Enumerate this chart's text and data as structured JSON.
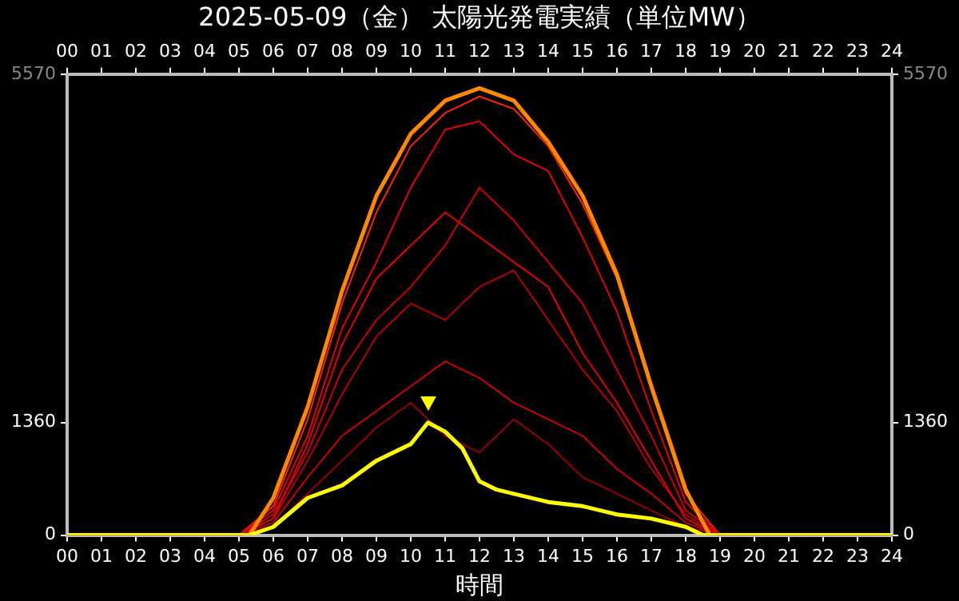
{
  "chart_data": {
    "type": "line",
    "title": "2025-05-09（金） 太陽光発電実績（単位MW）",
    "xlabel": "時間",
    "series": [
      {
        "color": "#ff2200",
        "x": [
          0,
          5,
          6,
          7,
          8,
          9,
          10,
          11,
          12,
          13,
          14,
          15,
          16,
          17,
          18,
          19,
          24
        ],
        "values": [
          0,
          0,
          350,
          1400,
          2800,
          3900,
          4700,
          5100,
          5300,
          5150,
          4700,
          4000,
          3100,
          1750,
          500,
          0,
          0
        ]
      },
      {
        "color": "#e60000",
        "x": [
          0,
          5,
          6,
          7,
          8,
          9,
          10,
          11,
          12,
          13,
          14,
          15,
          16,
          17,
          18,
          19,
          24
        ],
        "values": [
          0,
          0,
          300,
          1200,
          2500,
          3300,
          4200,
          4900,
          5000,
          4600,
          4400,
          3600,
          2700,
          1500,
          400,
          0,
          0
        ]
      },
      {
        "color": "#cc0000",
        "x": [
          0,
          5,
          6,
          7,
          8,
          9,
          10,
          11,
          12,
          13,
          14,
          15,
          16,
          17,
          18,
          19,
          24
        ],
        "values": [
          0,
          0,
          250,
          1000,
          2000,
          2600,
          3000,
          3500,
          4200,
          3800,
          3300,
          2800,
          2000,
          1200,
          300,
          0,
          0
        ]
      },
      {
        "color": "#b30000",
        "x": [
          0,
          5,
          6,
          7,
          8,
          9,
          10,
          11,
          12,
          13,
          14,
          15,
          16,
          17,
          18,
          19,
          24
        ],
        "values": [
          0,
          0,
          200,
          900,
          1700,
          2400,
          2800,
          2600,
          3000,
          3200,
          2600,
          2000,
          1500,
          800,
          250,
          0,
          0
        ]
      },
      {
        "color": "#cc0000",
        "x": [
          0,
          5,
          6,
          7,
          8,
          9,
          10,
          11,
          12,
          13,
          14,
          15,
          16,
          17,
          18,
          19,
          24
        ],
        "values": [
          0,
          0,
          150,
          700,
          1200,
          1500,
          1800,
          2100,
          1900,
          1600,
          1400,
          1200,
          800,
          500,
          150,
          0,
          0
        ]
      },
      {
        "color": "#990000",
        "x": [
          0,
          5,
          6,
          7,
          8,
          9,
          10,
          11,
          12,
          13,
          14,
          15,
          16,
          17,
          18,
          19,
          24
        ],
        "values": [
          0,
          0,
          100,
          500,
          900,
          1300,
          1600,
          1200,
          1000,
          1400,
          1100,
          700,
          500,
          300,
          100,
          0,
          0
        ]
      },
      {
        "color": "#e60000",
        "x": [
          0,
          5,
          6,
          7,
          8,
          9,
          10,
          11,
          12,
          13,
          14,
          15,
          16,
          17,
          18,
          19,
          24
        ],
        "values": [
          0,
          0,
          200,
          1100,
          2300,
          3100,
          3500,
          3900,
          3600,
          3300,
          3000,
          2200,
          1600,
          900,
          200,
          0,
          0
        ]
      },
      {
        "color": "#ff8800",
        "x": [
          0,
          5.3,
          6,
          7,
          8,
          9,
          10,
          11,
          12,
          13,
          14,
          15,
          16,
          17,
          18,
          18.7,
          24
        ],
        "values": [
          0,
          0,
          450,
          1550,
          2950,
          4100,
          4850,
          5250,
          5400,
          5250,
          4750,
          4100,
          3150,
          1800,
          550,
          0,
          0
        ]
      },
      {
        "color": "#ffff00",
        "x": [
          0,
          5.3,
          6,
          7,
          8,
          9,
          10,
          10.5,
          11,
          11.5,
          12,
          12.5,
          13,
          14,
          15,
          16,
          17,
          18,
          18.5,
          24
        ],
        "values": [
          0,
          0,
          100,
          450,
          600,
          900,
          1100,
          1360,
          1250,
          1050,
          650,
          550,
          500,
          400,
          350,
          250,
          200,
          100,
          0,
          0
        ]
      }
    ],
    "xlim": [
      0,
      24
    ],
    "xticks": [
      {
        "value": 0,
        "label": "00"
      },
      {
        "value": 1,
        "label": "01"
      },
      {
        "value": 2,
        "label": "02"
      },
      {
        "value": 3,
        "label": "03"
      },
      {
        "value": 4,
        "label": "04"
      },
      {
        "value": 5,
        "label": "05"
      },
      {
        "value": 6,
        "label": "06"
      },
      {
        "value": 7,
        "label": "07"
      },
      {
        "value": 8,
        "label": "08"
      },
      {
        "value": 9,
        "label": "09"
      },
      10,
      11,
      12,
      13,
      14,
      15,
      16,
      17,
      18,
      19,
      20,
      21,
      22,
      23,
      24
    ],
    "x2lim": [
      0,
      24
    ],
    "x2ticks": [
      {
        "value": 0,
        "label": "00"
      },
      {
        "value": 1,
        "label": "01"
      },
      {
        "value": 2,
        "label": "02"
      },
      {
        "value": 3,
        "label": "03"
      },
      {
        "value": 4,
        "label": "04"
      },
      {
        "value": 5,
        "label": "05"
      },
      {
        "value": 6,
        "label": "06"
      },
      {
        "value": 7,
        "label": "07"
      },
      {
        "value": 8,
        "label": "08"
      },
      {
        "value": 9,
        "label": "09"
      },
      10,
      11,
      12,
      13,
      14,
      15,
      16,
      17,
      18,
      19,
      20,
      21,
      22,
      23,
      24
    ],
    "ylim": [
      0,
      5570
    ],
    "yticks": [
      0,
      1360,
      5570
    ],
    "y2lim": [
      0,
      5570
    ],
    "y2ticks": [
      0,
      1360,
      5570
    ],
    "grid": false,
    "legend": false,
    "marker": "none",
    "line_style": "solid"
  }
}
